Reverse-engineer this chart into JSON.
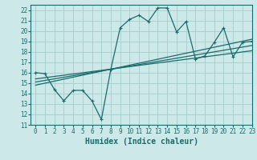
{
  "bg_color": "#cce8e8",
  "grid_color": "#aad0d0",
  "line_color": "#1a6b6b",
  "xlabel": "Humidex (Indice chaleur)",
  "xlim": [
    -0.5,
    23
  ],
  "ylim": [
    11,
    22.5
  ],
  "xticks": [
    0,
    1,
    2,
    3,
    4,
    5,
    6,
    7,
    8,
    9,
    10,
    11,
    12,
    13,
    14,
    15,
    16,
    17,
    18,
    19,
    20,
    21,
    22,
    23
  ],
  "yticks": [
    11,
    12,
    13,
    14,
    15,
    16,
    17,
    18,
    19,
    20,
    21,
    22
  ],
  "main_line_x": [
    0,
    1,
    2,
    3,
    4,
    5,
    6,
    7,
    8,
    9,
    10,
    11,
    12,
    13,
    14,
    15,
    16,
    17,
    18,
    19,
    20,
    21,
    22,
    23
  ],
  "main_line_y": [
    16.0,
    15.9,
    14.4,
    13.3,
    14.3,
    14.3,
    13.3,
    11.5,
    16.3,
    20.3,
    21.1,
    21.5,
    20.9,
    22.2,
    22.2,
    19.9,
    20.9,
    17.3,
    17.6,
    18.9,
    20.3,
    17.5,
    18.9,
    19.0
  ],
  "line2_x": [
    0,
    23
  ],
  "line2_y": [
    15.1,
    18.6
  ],
  "line3_x": [
    0,
    23
  ],
  "line3_y": [
    15.4,
    18.1
  ],
  "line4_x": [
    0,
    23
  ],
  "line4_y": [
    14.8,
    19.2
  ],
  "tick_fontsize": 5.5,
  "xlabel_fontsize": 7
}
